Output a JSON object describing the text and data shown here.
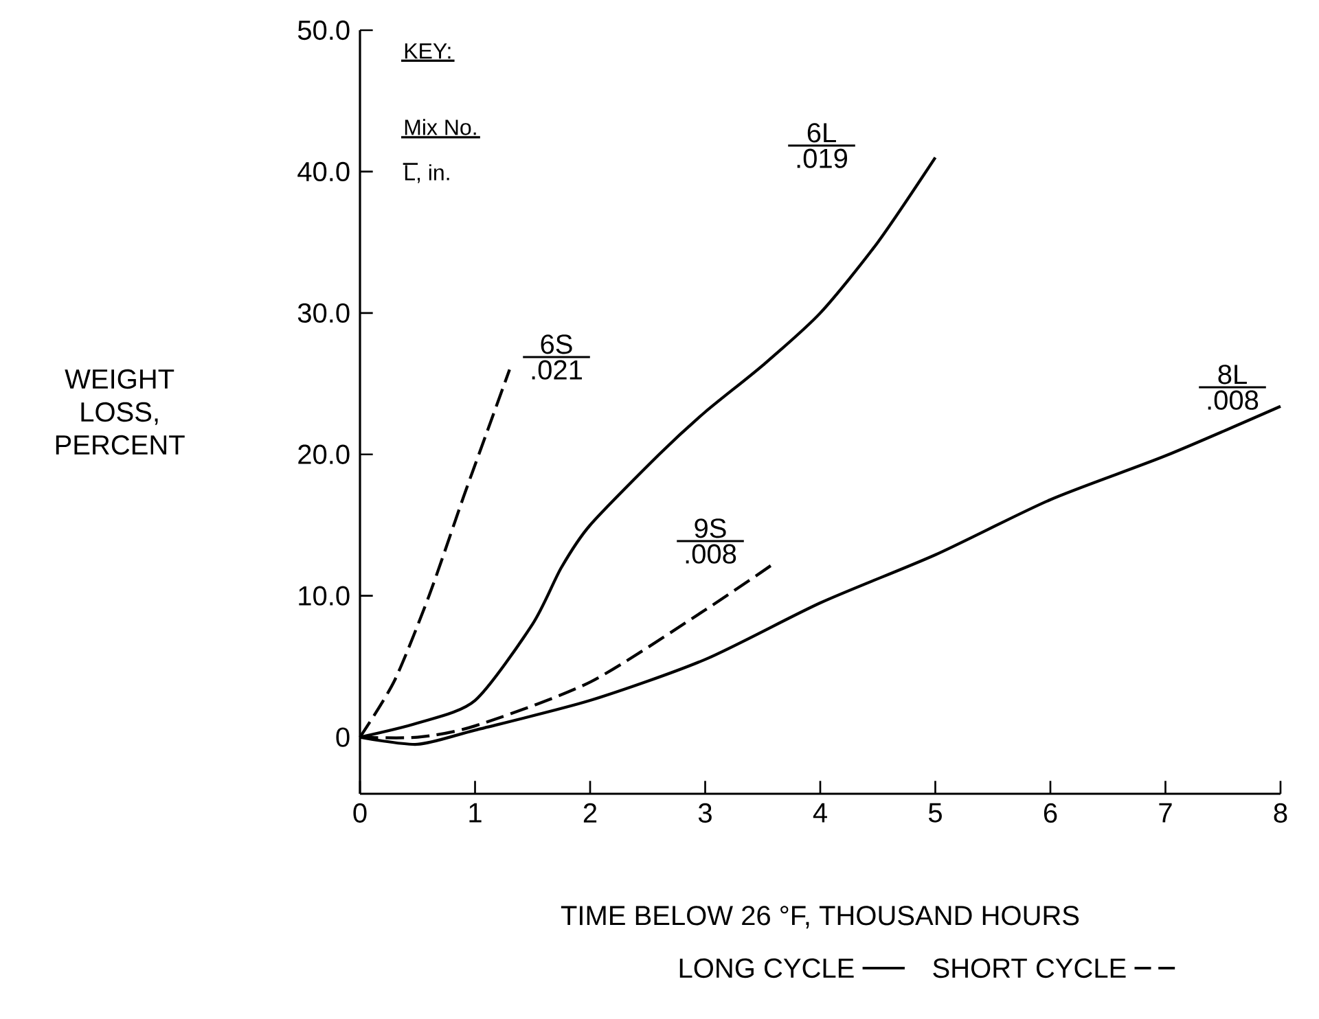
{
  "chart_data": {
    "type": "line",
    "xlabel": "TIME BELOW 26 °F, THOUSAND HOURS",
    "ylabel": "WEIGHT LOSS, PERCENT",
    "xlim": [
      0,
      8
    ],
    "ylim": [
      -4,
      50
    ],
    "xticks": [
      0,
      1,
      2,
      3,
      4,
      5,
      6,
      7,
      8
    ],
    "yticks": [
      {
        "value": 0,
        "label": "0"
      },
      {
        "value": 10,
        "label": "10.0"
      },
      {
        "value": 20,
        "label": "20.0"
      },
      {
        "value": 30,
        "label": "30.0"
      },
      {
        "value": 40,
        "label": "40.0"
      },
      {
        "value": 50,
        "label": "50.0"
      }
    ],
    "grid": false,
    "marker": "none",
    "series": [
      {
        "color": "#000000",
        "line_style": "dashed",
        "x": [
          0,
          0.3,
          0.6,
          0.9,
          1.1,
          1.3
        ],
        "values": [
          0,
          4,
          10,
          17,
          21.5,
          26
        ]
      },
      {
        "color": "#000000",
        "line_style": "solid",
        "x": [
          0,
          0.5,
          1,
          1.5,
          1.75,
          2,
          2.6,
          3,
          3.5,
          4,
          4.5,
          5
        ],
        "values": [
          0,
          1,
          2.6,
          8,
          12,
          15,
          20,
          23,
          26.3,
          30,
          35,
          41
        ]
      },
      {
        "color": "#000000",
        "line_style": "dashed",
        "x": [
          0,
          0.5,
          1,
          2,
          3,
          3.6
        ],
        "values": [
          0,
          0,
          0.8,
          3.9,
          9,
          12.3
        ]
      },
      {
        "color": "#000000",
        "line_style": "solid",
        "x": [
          0,
          0.5,
          1,
          2,
          3,
          4,
          5,
          6,
          7,
          8
        ],
        "values": [
          0,
          -0.5,
          0.5,
          2.6,
          5.5,
          9.5,
          12.9,
          16.8,
          19.9,
          23.4
        ]
      }
    ],
    "annotations": [
      "KEY:",
      "Mix No.",
      "L, in.",
      "LONG CYCLE",
      "SHORT CYCLE",
      "6S",
      ".021",
      "6L",
      ".019",
      "9S",
      ".008",
      "8L",
      ".008"
    ]
  }
}
